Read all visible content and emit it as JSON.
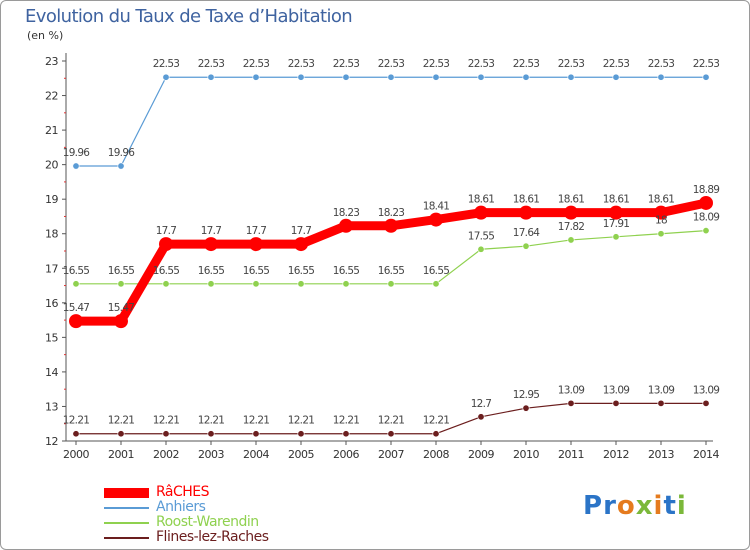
{
  "header": {
    "title": "Evolution du Taux de Taxe d’Habitation",
    "unit": "(en %)"
  },
  "logo": {
    "text": "Proxiti",
    "letters": [
      {
        "ch": "P",
        "color": "#2b74c7"
      },
      {
        "ch": "r",
        "color": "#2b74c7"
      },
      {
        "ch": "o",
        "color": "#e57b1e"
      },
      {
        "ch": "x",
        "color": "#7bb83a"
      },
      {
        "ch": "i",
        "color": "#e57b1e"
      },
      {
        "ch": "t",
        "color": "#2b74c7"
      },
      {
        "ch": "i",
        "color": "#7bb83a"
      }
    ]
  },
  "chart_data": {
    "type": "line",
    "title": "Evolution du Taux de Taxe d’Habitation",
    "ylabel": "(en %)",
    "xlabel": "",
    "x": [
      "2000",
      "2001",
      "2002",
      "2003",
      "2004",
      "2005",
      "2006",
      "2007",
      "2008",
      "2009",
      "2010",
      "2011",
      "2012",
      "2013",
      "2014"
    ],
    "ylim": [
      12,
      23
    ],
    "yticks": [
      "12",
      "13",
      "14",
      "15",
      "16",
      "17",
      "18",
      "19",
      "20",
      "21",
      "22",
      "23"
    ],
    "grid": false,
    "legend_position": "bottom-left",
    "series": [
      {
        "name": "RâCHES",
        "color": "#ff0000",
        "thick": true,
        "values": [
          15.47,
          15.47,
          17.7,
          17.7,
          17.7,
          17.7,
          18.23,
          18.23,
          18.41,
          18.61,
          18.61,
          18.61,
          18.61,
          18.61,
          18.89
        ],
        "labels": [
          "15.47",
          "15.47",
          "17.7",
          "17.7",
          "17.7",
          "17.7",
          "18.23",
          "18.23",
          "18.41",
          "18.61",
          "18.61",
          "18.61",
          "18.61",
          "18.61",
          "18.89"
        ]
      },
      {
        "name": "Anhiers",
        "color": "#5a9bd5",
        "thick": false,
        "values": [
          19.96,
          19.96,
          22.53,
          22.53,
          22.53,
          22.53,
          22.53,
          22.53,
          22.53,
          22.53,
          22.53,
          22.53,
          22.53,
          22.53,
          22.53
        ],
        "labels": [
          "19.96",
          "19.96",
          "22.53",
          "22.53",
          "22.53",
          "22.53",
          "22.53",
          "22.53",
          "22.53",
          "22.53",
          "22.53",
          "22.53",
          "22.53",
          "22.53",
          "22.53"
        ]
      },
      {
        "name": "Roost-Warendin",
        "color": "#8fd14f",
        "thick": false,
        "values": [
          16.55,
          16.55,
          16.55,
          16.55,
          16.55,
          16.55,
          16.55,
          16.55,
          16.55,
          17.55,
          17.64,
          17.82,
          17.91,
          18,
          18.09
        ],
        "labels": [
          "16.55",
          "16.55",
          "16.55",
          "16.55",
          "16.55",
          "16.55",
          "16.55",
          "16.55",
          "16.55",
          "17.55",
          "17.64",
          "17.82",
          "17.91",
          "18",
          "18.09"
        ]
      },
      {
        "name": "Flines-lez-Raches",
        "color": "#6b1e1e",
        "thick": false,
        "values": [
          12.21,
          12.21,
          12.21,
          12.21,
          12.21,
          12.21,
          12.21,
          12.21,
          12.21,
          12.7,
          12.95,
          13.09,
          13.09,
          13.09,
          13.09
        ],
        "labels": [
          "12.21",
          "12.21",
          "12.21",
          "12.21",
          "12.21",
          "12.21",
          "12.21",
          "12.21",
          "12.21",
          "12.7",
          "12.95",
          "13.09",
          "13.09",
          "13.09",
          "13.09"
        ]
      }
    ]
  }
}
